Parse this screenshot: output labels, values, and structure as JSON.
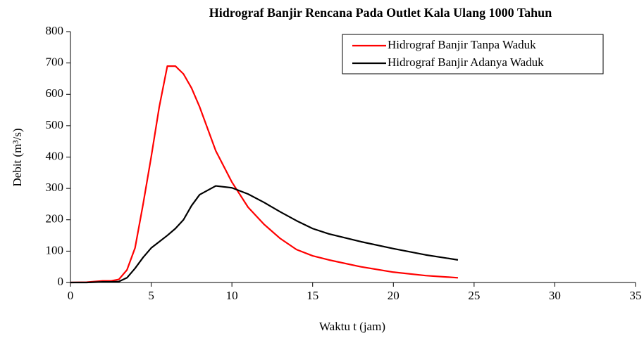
{
  "chart_data": {
    "type": "line",
    "title": "Hidrograf Banjir Rencana Pada Outlet Kala Ulang 1000 Tahun",
    "x_label": "Waktu t (jam)",
    "y_label": "Debit (m³/s)",
    "x": [
      0,
      1,
      2,
      2.5,
      3,
      3.5,
      4,
      4.5,
      5,
      5.5,
      6,
      6.5,
      7,
      7.5,
      8,
      9,
      10,
      11,
      12,
      13,
      14,
      15,
      16,
      18,
      20,
      22,
      24
    ],
    "series": [
      {
        "name": "Hidrograf Banjir Tanpa Waduk",
        "color": "#ff0000",
        "values": [
          0,
          1,
          5,
          5,
          10,
          40,
          110,
          250,
          400,
          560,
          690,
          690,
          665,
          620,
          560,
          420,
          320,
          240,
          185,
          140,
          105,
          85,
          72,
          50,
          33,
          22,
          15
        ]
      },
      {
        "name": "Hidrograf Banjir Adanya Waduk",
        "color": "#000000",
        "values": [
          0,
          0,
          2,
          2,
          3,
          15,
          45,
          80,
          110,
          130,
          150,
          172,
          200,
          245,
          280,
          308,
          302,
          282,
          255,
          225,
          197,
          172,
          155,
          130,
          108,
          88,
          72
        ]
      }
    ],
    "xlim": [
      0,
      35
    ],
    "xticks": [
      0,
      5,
      10,
      15,
      20,
      25,
      30,
      35
    ],
    "ylim": [
      0,
      800
    ],
    "yticks": [
      0,
      100,
      200,
      300,
      400,
      500,
      600,
      700,
      800
    ],
    "legend": "upper right"
  }
}
